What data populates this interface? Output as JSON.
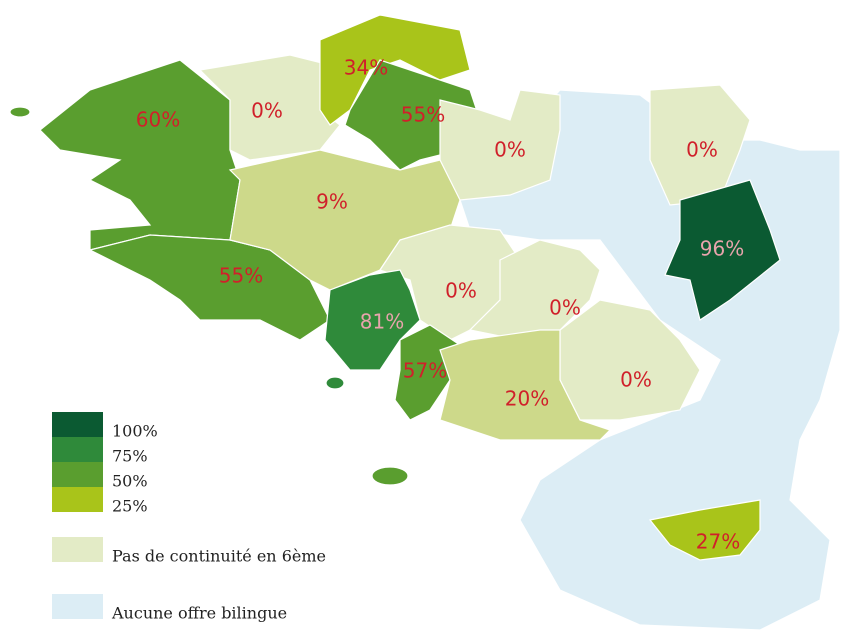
{
  "map": {
    "regions": [
      {
        "label": "60%"
      },
      {
        "label": "0%"
      },
      {
        "label": "34%"
      },
      {
        "label": "55%"
      },
      {
        "label": "0%"
      },
      {
        "label": "0%"
      },
      {
        "label": "9%"
      },
      {
        "label": "96%"
      },
      {
        "label": "55%"
      },
      {
        "label": "0%"
      },
      {
        "label": "0%"
      },
      {
        "label": "81%"
      },
      {
        "label": "57%"
      },
      {
        "label": "20%"
      },
      {
        "label": "0%"
      },
      {
        "label": "27%"
      }
    ],
    "legend": [
      {
        "label": "100%",
        "color": "#0b5a32"
      },
      {
        "label": "75%",
        "color": "#2f8a3a"
      },
      {
        "label": "50%",
        "color": "#5a9e2f"
      },
      {
        "label": "25%",
        "color": "#a9c41a"
      },
      {
        "label": "Pas de continuité en 6ème",
        "color": "#e3ebc6"
      },
      {
        "label": "Aucune offre bilingue",
        "color": "#dcedf5"
      }
    ]
  }
}
